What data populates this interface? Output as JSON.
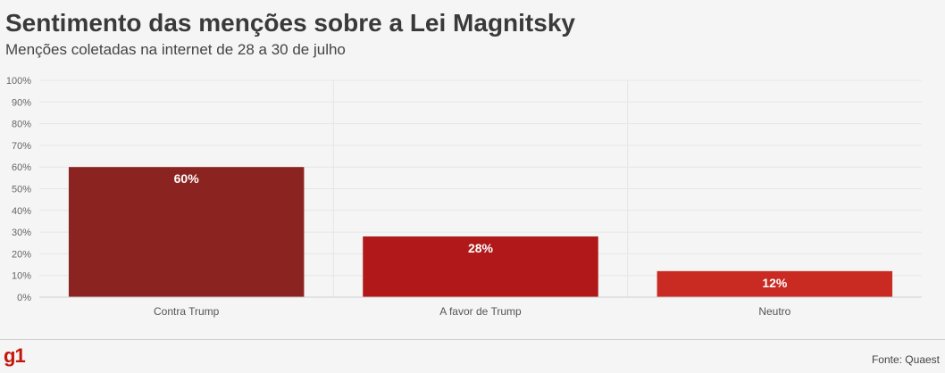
{
  "header": {
    "title": "Sentimento das menções sobre a Lei Magnitsky",
    "subtitle": "Menções coletadas na internet de 28 a 30 de julho"
  },
  "footer": {
    "logo": "g1",
    "source": "Fonte: Quaest"
  },
  "chart_data": {
    "type": "bar",
    "categories": [
      "Contra Trump",
      "A favor de Trump",
      "Neutro"
    ],
    "values": [
      60,
      28,
      12
    ],
    "value_labels": [
      "60%",
      "28%",
      "12%"
    ],
    "colors": [
      "#8b2420",
      "#b0181a",
      "#c92a22"
    ],
    "ylim": [
      0,
      100
    ],
    "yticks": [
      "0%",
      "10%",
      "20%",
      "30%",
      "40%",
      "50%",
      "60%",
      "70%",
      "80%",
      "90%",
      "100%"
    ],
    "grid": true
  }
}
